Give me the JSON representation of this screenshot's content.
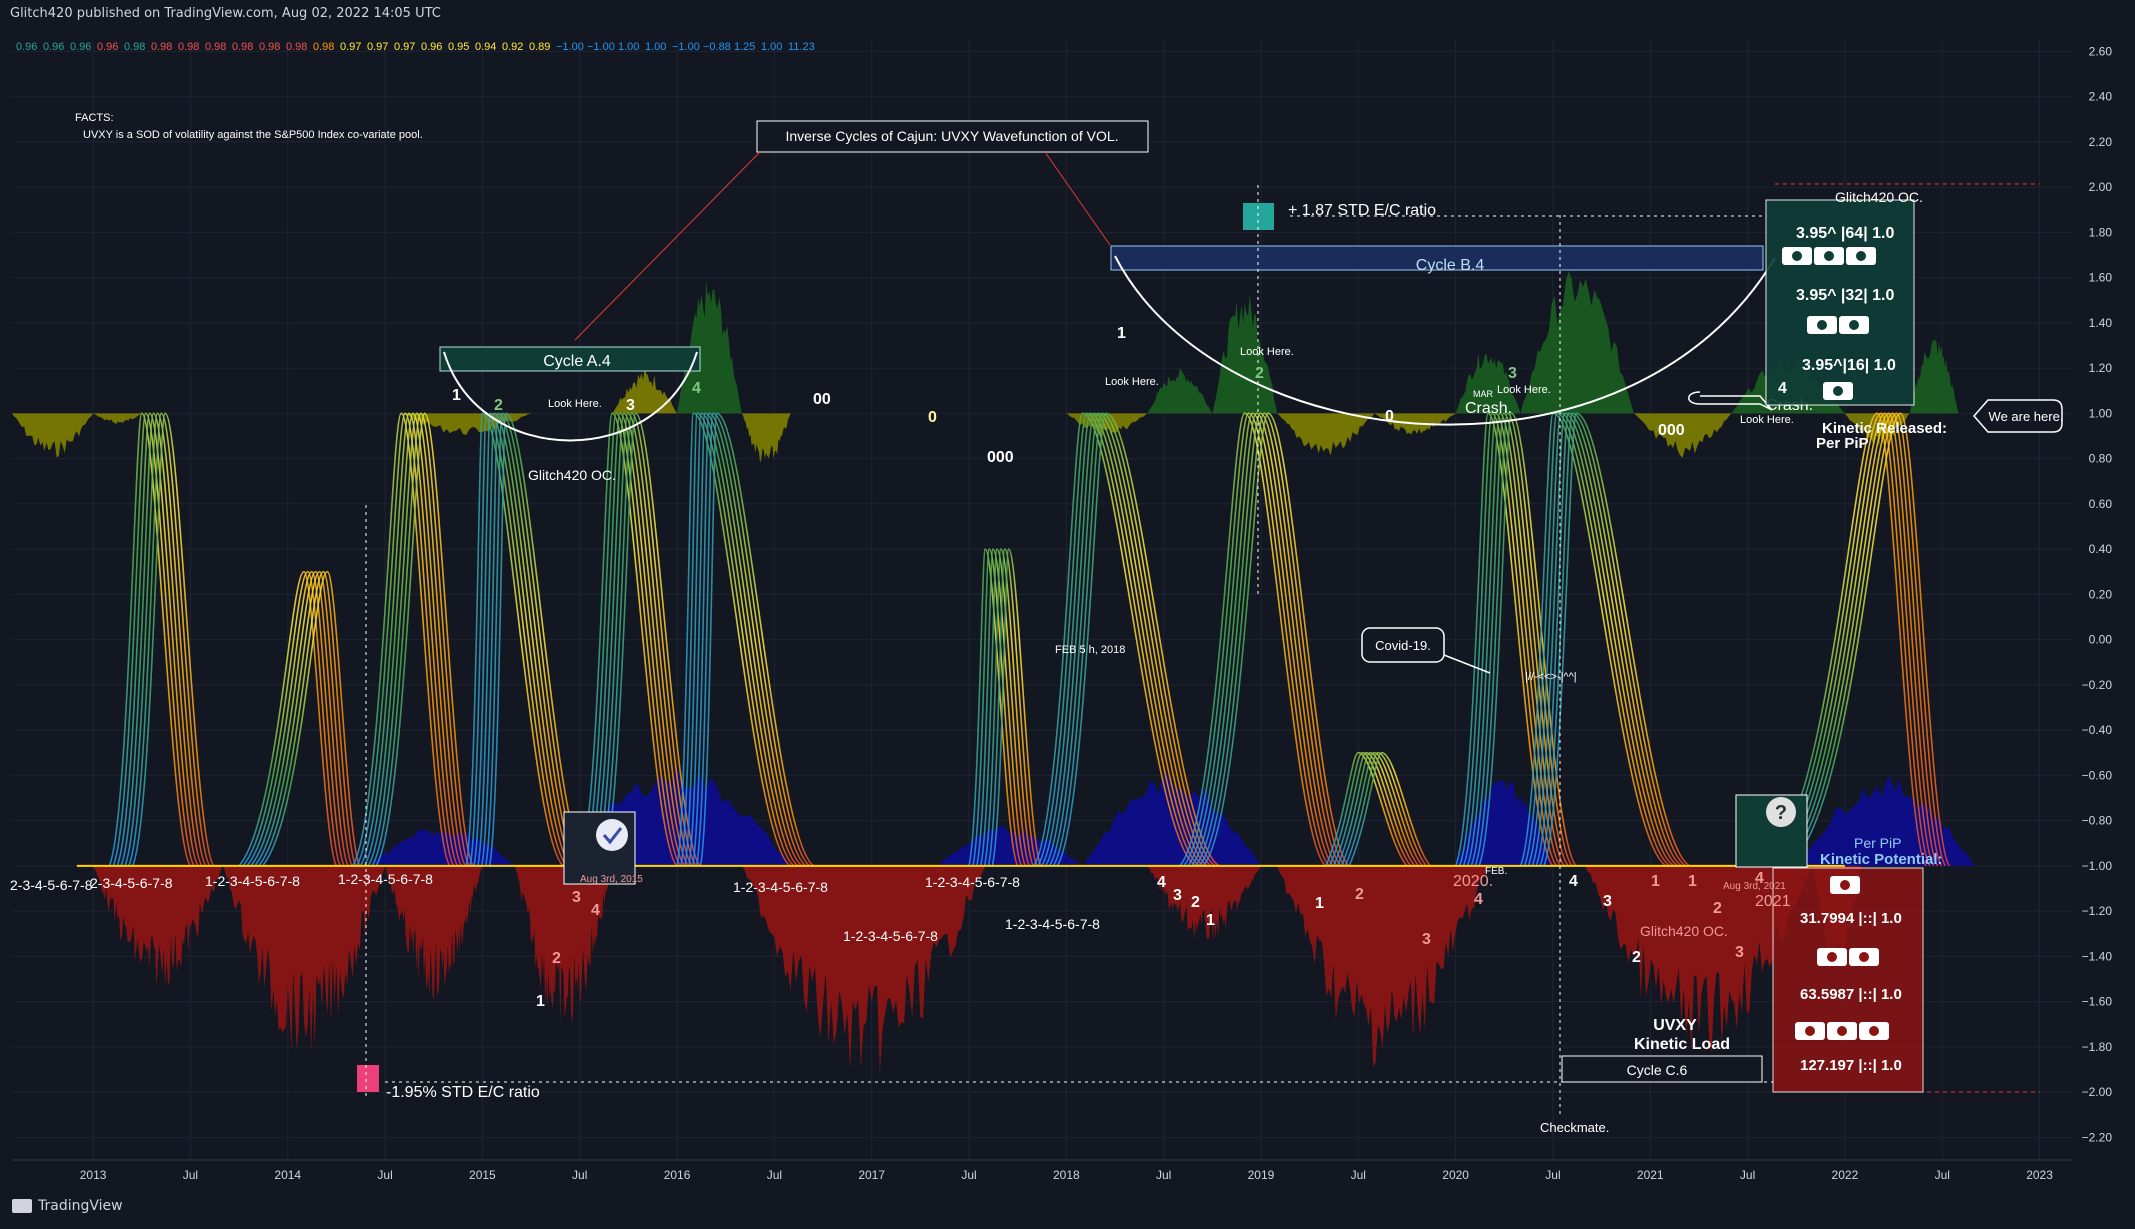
{
  "header": {
    "text": "Glitch420 published on TradingView.com, Aug 02, 2022 14:05 UTC"
  },
  "footer": {
    "brand": "TradingView",
    "logo_icon": "tradingview-logo-icon"
  },
  "values_strip": [
    "0.96",
    "0.96",
    "0.96",
    "0.96",
    "0.98",
    "0.98",
    "0.98",
    "0.98",
    "0.98",
    "0.98",
    "0.98",
    "0.98",
    "0.97",
    "0.97",
    "0.97",
    "0.96",
    "0.95",
    "0.94",
    "0.92",
    "0.89",
    "−1.00",
    "−1.00",
    "1.00",
    "1.00",
    "−1.00",
    "−0.88",
    "1.25",
    "1.00",
    "11.23"
  ],
  "values_strip_colors": [
    "#26a69a",
    "#26a69a",
    "#26a69a",
    "#ef5350",
    "#26a69a",
    "#ef5350",
    "#ef5350",
    "#ef5350",
    "#ef5350",
    "#ef5350",
    "#ef5350",
    "#ff9800",
    "#ffeb3b",
    "#ffeb3b",
    "#ffeb3b",
    "#ffeb3b",
    "#ffeb3b",
    "#ffeb3b",
    "#ffeb3b",
    "#ffeb3b",
    "#2196f3",
    "#2196f3",
    "#2196f3",
    "#2196f3",
    "#2196f3",
    "#2196f3",
    "#2196f3",
    "#2196f3",
    "#2196f3"
  ],
  "colors": {
    "bg": "#131722",
    "grid": "#1f2433",
    "green": "#1b5e20",
    "olive": "#808000",
    "red": "#8b1414",
    "blue": "#0d0d8c",
    "gold": "#ffd700",
    "axis_text": "#d1d4dc"
  },
  "chart_data": {
    "type": "area",
    "y_axis_ticks": [
      "2.60",
      "2.40",
      "2.20",
      "2.00",
      "1.80",
      "1.60",
      "1.40",
      "1.20",
      "1.00",
      "0.80",
      "0.60",
      "0.40",
      "0.20",
      "0.00",
      "−0.20",
      "−0.40",
      "−0.60",
      "−0.80",
      "−1.00",
      "−1.20",
      "−1.40",
      "−1.60",
      "−1.80",
      "−2.00",
      "−2.20"
    ],
    "ylim": [
      -2.3,
      2.65
    ],
    "x_axis_ticks": [
      "2013",
      "Jul",
      "2014",
      "Jul",
      "2015",
      "Jul",
      "2016",
      "Jul",
      "2017",
      "Jul",
      "2018",
      "Jul",
      "2019",
      "Jul",
      "2020",
      "Jul",
      "2021",
      "Jul",
      "2022",
      "Jul",
      "2023"
    ],
    "xlim": [
      "2012-08",
      "2023-03"
    ],
    "oscillator_peaks": [
      {
        "date": "2013-04",
        "value": 1.0
      },
      {
        "date": "2014-08",
        "value": 1.0
      },
      {
        "date": "2015-01",
        "value": 1.0
      },
      {
        "date": "2015-09",
        "value": 1.0
      },
      {
        "date": "2016-02",
        "value": 1.0
      },
      {
        "date": "2018-02",
        "value": 1.0
      },
      {
        "date": "2018-12",
        "value": 1.0
      },
      {
        "date": "2020-03",
        "value": 1.0
      },
      {
        "date": "2020-07",
        "value": 1.0
      },
      {
        "date": "2022-03",
        "value": 1.0
      }
    ]
  },
  "annotations": {
    "facts_title": "FACTS:",
    "facts_text": "UVXY is a SOD of volatility against the S&P500 Index co-variate pool.",
    "title_box": "Inverse Cycles of Cajun: UVXY Wavefunction of VOL.",
    "cycle_a": "Cycle A.4",
    "cycle_b": "Cycle B.4",
    "cycle_c": "Cycle C.6",
    "std_pos": "+ 1.87 STD E/C ratio",
    "std_neg": "-1.95% STD E/C ratio",
    "glitch_oc_1": "Glitch420 OC.",
    "glitch_oc_2": "Glitch420 OC.",
    "glitch_oc_3": "Glitch420 OC.",
    "look_here": "Look Here.",
    "covid": "Covid-19.",
    "feb5": "FEB 5 h, 2018",
    "mar_crash_small": "MAR",
    "crash": "Crash.",
    "crash2": "Crash.",
    "we_are_here": "We are here.",
    "kinetic_released": "Kinetic Released:",
    "per_pip": "Per PiP",
    "per_pip2": "Per PiP",
    "kinetic_potential": "Kinetic Potential:",
    "r1": "3.95^ |64| 1.0",
    "r2": "3.95^ |32| 1.0",
    "r3": "3.95^|16| 1.0",
    "p1": "31.7994 |::| 1.0",
    "p2": "63.5987 |::| 1.0",
    "p3": "127.197 |::| 1.0",
    "uvxy": "UVXY",
    "kinetic_load": "Kinetic Load",
    "checkmate": "Checkmate.",
    "aug3_2015": "Aug 3rd, 2015",
    "aug3_2021": "Aug 3rd, 2021",
    "y2020": "2020.",
    "y2021": "2021",
    "feb": "FEB.",
    "seq1": "2-3-4-5-6-7-8",
    "seq2": "2-3-4-5-6-7-8",
    "seq3": "1-2-3-4-5-6-7-8",
    "seq4": "1-2-3-4-5-6-7-8",
    "seq5": "1-2-3-4-5-6-7-8",
    "seq6": "1-2-3-4-5-6-7-8",
    "seq7": "1-2-3-4-5-6-7-8",
    "seq8": "1-2-3-4-5-6-7-8",
    "zero00": "00",
    "zero0": "0",
    "zero000": "000",
    "zero0b": "0",
    "zero000b": "000",
    "glyph_mid": "|//-<<>-|^^|",
    "question": "?"
  },
  "wave_numbers": [
    {
      "t": "1",
      "c": "#ffffff"
    },
    {
      "t": "2",
      "c": "#81c784"
    },
    {
      "t": "3",
      "c": "#ffffff"
    },
    {
      "t": "4",
      "c": "#81c784"
    },
    {
      "t": "1",
      "c": "#ffffff"
    },
    {
      "t": "2",
      "c": "#81c784"
    },
    {
      "t": "3",
      "c": "#81c784"
    },
    {
      "t": "4",
      "c": "#ffffff"
    },
    {
      "t": "4",
      "c": "#ffffff"
    },
    {
      "t": "3",
      "c": "#ffffff"
    },
    {
      "t": "2",
      "c": "#ffffff"
    },
    {
      "t": "1",
      "c": "#ffffff"
    },
    {
      "t": "1",
      "c": "#ffffff"
    },
    {
      "t": "2",
      "c": "#ef9a9a"
    },
    {
      "t": "3",
      "c": "#ef9a9a"
    },
    {
      "t": "4",
      "c": "#ef9a9a"
    },
    {
      "t": "4",
      "c": "#ffffff"
    },
    {
      "t": "3",
      "c": "#ffffff"
    },
    {
      "t": "2",
      "c": "#ffffff"
    },
    {
      "t": "1",
      "c": "#ef9a9a"
    },
    {
      "t": "1",
      "c": "#ef9a9a"
    },
    {
      "t": "2",
      "c": "#ef9a9a"
    },
    {
      "t": "3",
      "c": "#ef9a9a"
    },
    {
      "t": "4",
      "c": "#ef9a9a"
    },
    {
      "t": "1",
      "c": "#ffffff"
    },
    {
      "t": "2",
      "c": "#ef9a9a"
    },
    {
      "t": "3",
      "c": "#ef9a9a"
    },
    {
      "t": "4",
      "c": "#ef9a9a"
    }
  ]
}
